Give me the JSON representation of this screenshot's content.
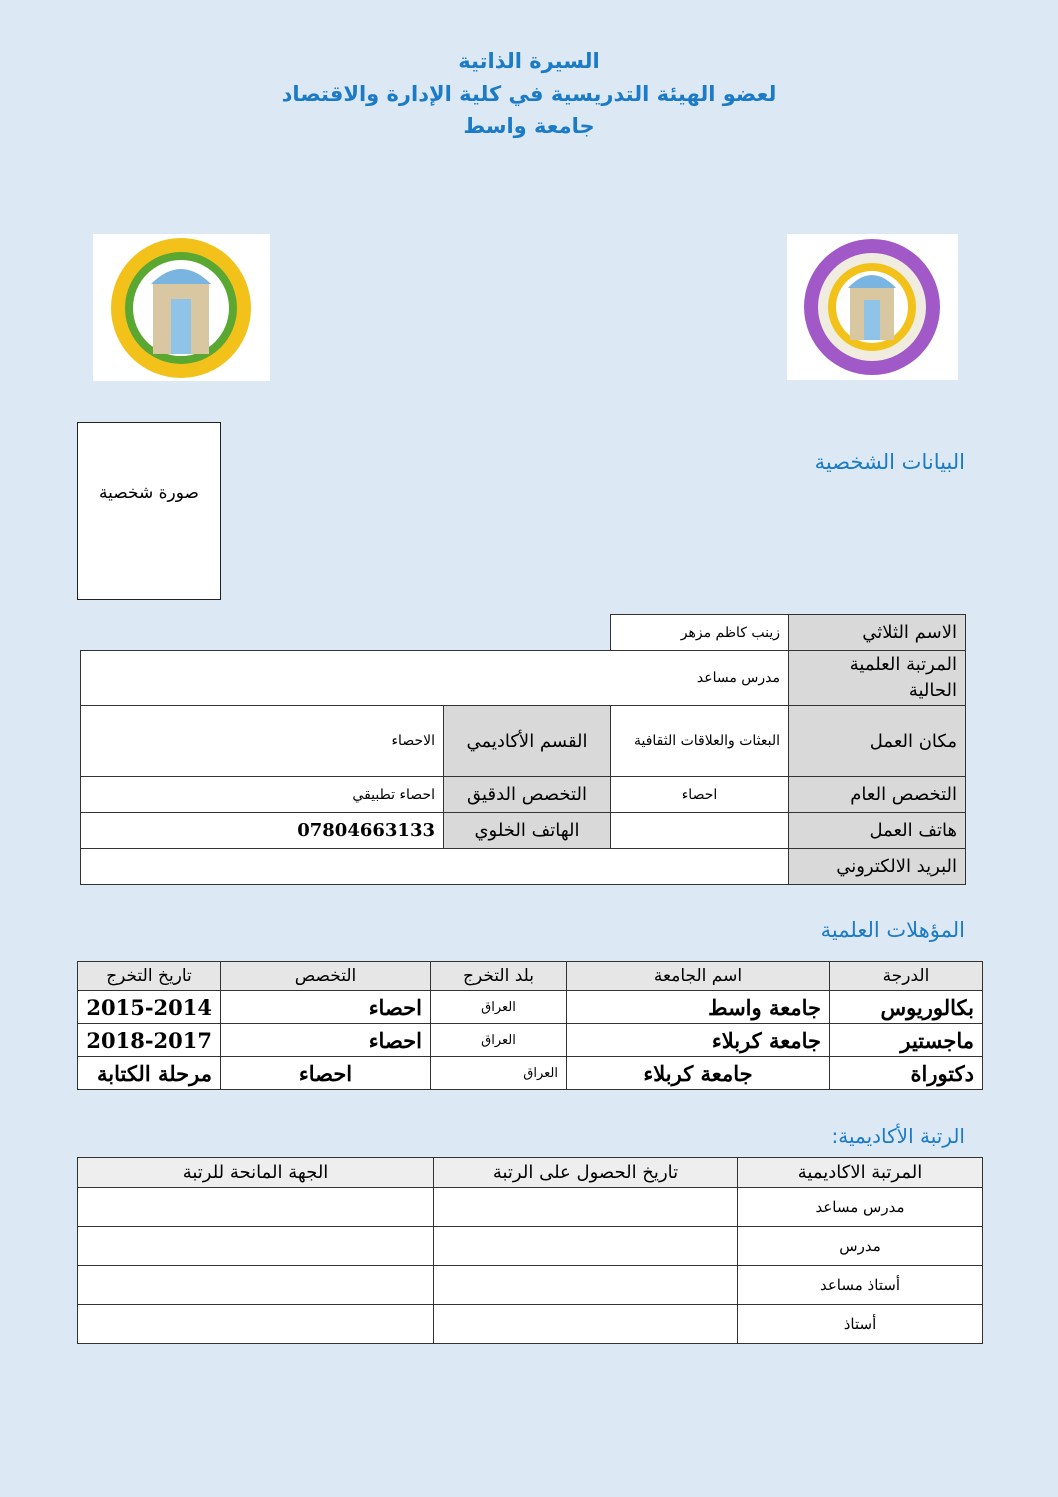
{
  "header": {
    "line1": "السيرة الذاتية",
    "line2": "لعضو الهيئة التدريسية في كلية الإدارة والاقتصاد",
    "line3": "جامعة واسط"
  },
  "logos": {
    "left": "WASIT UNIVERSITY - جامعة واسط",
    "right": "جامعة واسط - كلية الادارة والاقتصاد - Wasit University - College of Administration and Economics"
  },
  "colors": {
    "accent": "#1b7bc6",
    "background": "#dde8f5",
    "label_bg": "#d9d9d9"
  },
  "photo_label": "صورة شخصية",
  "personal": {
    "heading": "البيانات الشخصية",
    "name_label": "الاسم الثلاثي",
    "name": "زينب كاظم مزهر",
    "rank_label": "المرتبة العلمية الحالية",
    "rank": "مدرس مساعد",
    "workplace_label": "مكان العمل",
    "workplace": "البعثات والعلاقات الثقافية",
    "department_label": "القسم الأكاديمي",
    "department": "الاحصاء",
    "general_spec_label": "التخصص العام",
    "general_spec": "احصاء",
    "precise_spec_label": "التخصص الدقيق",
    "precise_spec": "احصاء تطبيقي",
    "work_phone_label": "هاتف العمل",
    "work_phone": "",
    "mobile_label": "الهاتف الخلوي",
    "mobile": "07804663133",
    "email_label": "البريد الالكتروني",
    "email": ""
  },
  "qualifications": {
    "heading": "المؤهلات العلمية",
    "columns": [
      "الدرجة",
      "اسم الجامعة",
      "بلد التخرج",
      "التخصص",
      "تاريخ التخرج"
    ],
    "rows": [
      [
        "بكالوريوس",
        "جامعة واسط",
        "العراق",
        "احصاء",
        "2015-2014"
      ],
      [
        "ماجستير",
        "جامعة كربلاء",
        "العراق",
        "احصاء",
        "2018-2017"
      ],
      [
        "دكتوراة",
        "جامعة كربلاء",
        "العراق",
        "احصاء",
        "مرحلة الكتابة"
      ]
    ]
  },
  "ranks": {
    "heading": "الرتبة الأكاديمية:",
    "columns": [
      "المرتبة الاكاديمية",
      "تاريخ الحصول على الرتبة",
      "الجهة المانحة للرتبة"
    ],
    "rows": [
      [
        "مدرس مساعد",
        "",
        ""
      ],
      [
        "مدرس",
        "",
        ""
      ],
      [
        "أستاذ مساعد",
        "",
        ""
      ],
      [
        "أستاذ",
        "",
        ""
      ]
    ]
  }
}
